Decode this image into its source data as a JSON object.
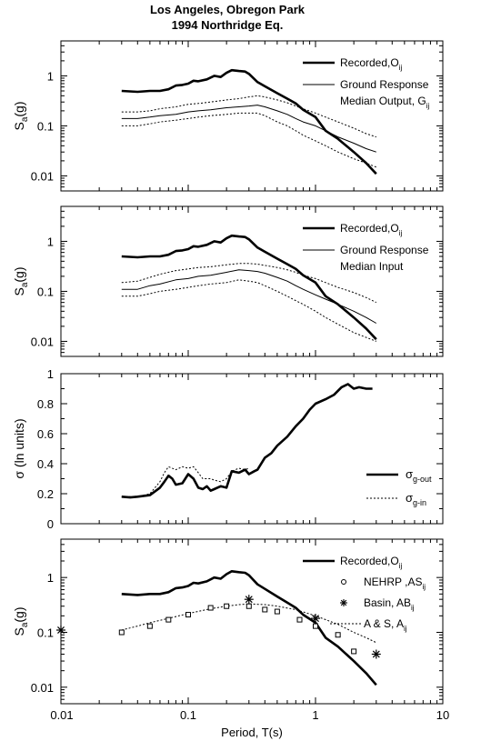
{
  "title_line1": "Los Angeles, Obregon Park",
  "title_line2": "1994 Northridge Eq.",
  "xlabel": "Period, T(s)",
  "x_ticks": [
    "0.01",
    "0.1",
    "1",
    "10"
  ],
  "chart_data": [
    {
      "type": "line",
      "panel": 1,
      "xscale": "log",
      "yscale": "log",
      "xlim": [
        0.01,
        10
      ],
      "ylim": [
        0.005,
        5
      ],
      "ylabel_main": "S",
      "ylabel_sub": "a",
      "ylabel_tail": "(g)",
      "y_ticks": [
        {
          "v": 1,
          "label": "1"
        },
        {
          "v": 0.1,
          "label": "0.1"
        },
        {
          "v": 0.01,
          "label": "0.01"
        }
      ],
      "legend_placement": "top-right",
      "legend": [
        {
          "text": "Recorded,O",
          "sub": "ij",
          "style": "thick"
        },
        {
          "text": "Ground Response",
          "text2": "Median Output, G",
          "sub": "ij",
          "style": "thin"
        }
      ],
      "series": [
        {
          "style": "thick",
          "x": [
            0.03,
            0.04,
            0.05,
            0.06,
            0.07,
            0.08,
            0.09,
            0.1,
            0.11,
            0.12,
            0.14,
            0.16,
            0.18,
            0.2,
            0.22,
            0.25,
            0.28,
            0.3,
            0.35,
            0.4,
            0.5,
            0.6,
            0.7,
            0.8,
            1.0,
            1.2,
            1.5,
            2.0,
            2.5,
            3.0
          ],
          "y": [
            0.5,
            0.48,
            0.5,
            0.5,
            0.54,
            0.64,
            0.66,
            0.7,
            0.8,
            0.78,
            0.85,
            1.0,
            0.95,
            1.15,
            1.3,
            1.25,
            1.22,
            1.1,
            0.75,
            0.62,
            0.45,
            0.35,
            0.28,
            0.21,
            0.15,
            0.08,
            0.055,
            0.03,
            0.018,
            0.011
          ]
        },
        {
          "style": "thin",
          "x": [
            0.03,
            0.04,
            0.05,
            0.06,
            0.08,
            0.1,
            0.12,
            0.15,
            0.2,
            0.25,
            0.3,
            0.35,
            0.4,
            0.5,
            0.6,
            0.7,
            0.8,
            1.0,
            1.2,
            1.5,
            2.0,
            2.5,
            3.0
          ],
          "y": [
            0.14,
            0.14,
            0.15,
            0.16,
            0.17,
            0.19,
            0.2,
            0.21,
            0.23,
            0.24,
            0.25,
            0.26,
            0.24,
            0.2,
            0.17,
            0.14,
            0.12,
            0.1,
            0.08,
            0.06,
            0.045,
            0.035,
            0.03
          ]
        },
        {
          "style": "dotted",
          "x": [
            0.03,
            0.04,
            0.05,
            0.06,
            0.08,
            0.1,
            0.12,
            0.15,
            0.2,
            0.25,
            0.3,
            0.35,
            0.4,
            0.5,
            0.6,
            0.7,
            0.8,
            1.0,
            1.2,
            1.5,
            2.0,
            2.5,
            3.0
          ],
          "y": [
            0.19,
            0.19,
            0.2,
            0.22,
            0.24,
            0.27,
            0.28,
            0.3,
            0.33,
            0.35,
            0.38,
            0.4,
            0.38,
            0.33,
            0.29,
            0.25,
            0.22,
            0.18,
            0.15,
            0.12,
            0.09,
            0.07,
            0.06
          ]
        },
        {
          "style": "dotted",
          "x": [
            0.03,
            0.04,
            0.05,
            0.06,
            0.08,
            0.1,
            0.12,
            0.15,
            0.2,
            0.25,
            0.3,
            0.35,
            0.4,
            0.5,
            0.6,
            0.7,
            0.8,
            1.0,
            1.2,
            1.5,
            2.0,
            2.5,
            3.0
          ],
          "y": [
            0.1,
            0.1,
            0.11,
            0.12,
            0.13,
            0.14,
            0.15,
            0.16,
            0.17,
            0.18,
            0.18,
            0.18,
            0.16,
            0.12,
            0.1,
            0.08,
            0.065,
            0.05,
            0.04,
            0.03,
            0.022,
            0.018,
            0.015
          ]
        }
      ]
    },
    {
      "type": "line",
      "panel": 2,
      "xscale": "log",
      "yscale": "log",
      "xlim": [
        0.01,
        10
      ],
      "ylim": [
        0.005,
        5
      ],
      "ylabel_main": "S",
      "ylabel_sub": "a",
      "ylabel_tail": "(g)",
      "y_ticks": [
        {
          "v": 1,
          "label": "1"
        },
        {
          "v": 0.1,
          "label": "0.1"
        },
        {
          "v": 0.01,
          "label": "0.01"
        }
      ],
      "legend_placement": "top-right",
      "legend": [
        {
          "text": "Recorded,O",
          "sub": "ij",
          "style": "thick"
        },
        {
          "text": "Ground Response",
          "text2": "Median Input",
          "sub": "",
          "style": "thin"
        }
      ],
      "series": [
        {
          "style": "thick",
          "x": [
            0.03,
            0.04,
            0.05,
            0.06,
            0.07,
            0.08,
            0.09,
            0.1,
            0.11,
            0.12,
            0.14,
            0.16,
            0.18,
            0.2,
            0.22,
            0.25,
            0.28,
            0.3,
            0.35,
            0.4,
            0.5,
            0.6,
            0.7,
            0.8,
            1.0,
            1.2,
            1.5,
            2.0,
            2.5,
            3.0
          ],
          "y": [
            0.5,
            0.48,
            0.5,
            0.5,
            0.54,
            0.64,
            0.66,
            0.7,
            0.8,
            0.78,
            0.85,
            1.0,
            0.95,
            1.15,
            1.3,
            1.25,
            1.22,
            1.1,
            0.75,
            0.62,
            0.45,
            0.35,
            0.28,
            0.21,
            0.15,
            0.08,
            0.055,
            0.03,
            0.018,
            0.011
          ]
        },
        {
          "style": "thin",
          "x": [
            0.03,
            0.04,
            0.05,
            0.06,
            0.08,
            0.1,
            0.12,
            0.15,
            0.2,
            0.25,
            0.3,
            0.35,
            0.4,
            0.5,
            0.6,
            0.7,
            0.8,
            1.0,
            1.2,
            1.5,
            2.0,
            2.5,
            3.0
          ],
          "y": [
            0.11,
            0.11,
            0.13,
            0.14,
            0.17,
            0.18,
            0.2,
            0.21,
            0.24,
            0.27,
            0.26,
            0.25,
            0.23,
            0.19,
            0.16,
            0.13,
            0.11,
            0.085,
            0.07,
            0.055,
            0.04,
            0.03,
            0.023
          ]
        },
        {
          "style": "dotted",
          "x": [
            0.03,
            0.04,
            0.05,
            0.06,
            0.08,
            0.1,
            0.12,
            0.15,
            0.2,
            0.25,
            0.3,
            0.35,
            0.4,
            0.5,
            0.6,
            0.7,
            0.8,
            1.0,
            1.2,
            1.5,
            2.0,
            2.5,
            3.0
          ],
          "y": [
            0.15,
            0.16,
            0.19,
            0.22,
            0.26,
            0.28,
            0.3,
            0.31,
            0.34,
            0.36,
            0.36,
            0.35,
            0.33,
            0.3,
            0.27,
            0.24,
            0.21,
            0.18,
            0.15,
            0.12,
            0.095,
            0.075,
            0.06
          ]
        },
        {
          "style": "dotted",
          "x": [
            0.03,
            0.04,
            0.05,
            0.06,
            0.08,
            0.1,
            0.12,
            0.15,
            0.2,
            0.25,
            0.3,
            0.35,
            0.4,
            0.5,
            0.6,
            0.7,
            0.8,
            1.0,
            1.2,
            1.5,
            2.0,
            2.5,
            3.0
          ],
          "y": [
            0.08,
            0.08,
            0.09,
            0.1,
            0.11,
            0.12,
            0.13,
            0.14,
            0.15,
            0.17,
            0.16,
            0.15,
            0.13,
            0.1,
            0.08,
            0.065,
            0.055,
            0.04,
            0.03,
            0.022,
            0.015,
            0.012,
            0.01
          ]
        }
      ]
    },
    {
      "type": "line",
      "panel": 3,
      "xscale": "log",
      "yscale": "linear",
      "xlim": [
        0.01,
        10
      ],
      "ylim": [
        0,
        1
      ],
      "ylabel_main": "σ (ln units)",
      "ylabel_sub": "",
      "ylabel_tail": "",
      "y_ticks": [
        {
          "v": 0,
          "label": "0"
        },
        {
          "v": 0.2,
          "label": "0.2"
        },
        {
          "v": 0.4,
          "label": "0.4"
        },
        {
          "v": 0.6,
          "label": "0.6"
        },
        {
          "v": 0.8,
          "label": "0.8"
        },
        {
          "v": 1,
          "label": "1"
        }
      ],
      "legend_placement": "bottom-right",
      "legend": [
        {
          "text": "σ",
          "sub": "g-out",
          "style": "thick"
        },
        {
          "text": "σ",
          "sub": "g-in",
          "style": "dotted"
        }
      ],
      "series": [
        {
          "style": "thick",
          "x": [
            0.03,
            0.035,
            0.04,
            0.05,
            0.06,
            0.065,
            0.07,
            0.075,
            0.08,
            0.09,
            0.1,
            0.11,
            0.12,
            0.13,
            0.14,
            0.15,
            0.16,
            0.18,
            0.2,
            0.22,
            0.25,
            0.28,
            0.3,
            0.33,
            0.35,
            0.4,
            0.45,
            0.5,
            0.6,
            0.7,
            0.8,
            0.9,
            1.0,
            1.2,
            1.4,
            1.6,
            1.8,
            2.0,
            2.2,
            2.5,
            2.8
          ],
          "y": [
            0.18,
            0.175,
            0.18,
            0.19,
            0.24,
            0.28,
            0.32,
            0.3,
            0.26,
            0.27,
            0.33,
            0.3,
            0.24,
            0.23,
            0.25,
            0.22,
            0.23,
            0.25,
            0.24,
            0.35,
            0.34,
            0.36,
            0.33,
            0.35,
            0.36,
            0.44,
            0.47,
            0.52,
            0.58,
            0.65,
            0.7,
            0.76,
            0.8,
            0.83,
            0.86,
            0.91,
            0.93,
            0.9,
            0.91,
            0.9,
            0.9
          ]
        },
        {
          "style": "dotted",
          "x": [
            0.03,
            0.04,
            0.05,
            0.06,
            0.065,
            0.07,
            0.08,
            0.09,
            0.1,
            0.11,
            0.12,
            0.13,
            0.14,
            0.15,
            0.16,
            0.18,
            0.2,
            0.22,
            0.25,
            0.28,
            0.3
          ],
          "y": [
            0.18,
            0.18,
            0.2,
            0.28,
            0.34,
            0.38,
            0.36,
            0.38,
            0.37,
            0.38,
            0.34,
            0.3,
            0.3,
            0.3,
            0.29,
            0.28,
            0.3,
            0.35,
            0.37,
            0.36,
            0.37
          ]
        }
      ]
    },
    {
      "type": "line",
      "panel": 4,
      "xscale": "log",
      "yscale": "log",
      "xlim": [
        0.01,
        10
      ],
      "ylim": [
        0.005,
        5
      ],
      "ylabel_main": "S",
      "ylabel_sub": "a",
      "ylabel_tail": "(g)",
      "y_ticks": [
        {
          "v": 1,
          "label": "1"
        },
        {
          "v": 0.1,
          "label": "0.1"
        },
        {
          "v": 0.01,
          "label": "0.01"
        }
      ],
      "legend_placement": "top-right",
      "legend": [
        {
          "text": "Recorded,O",
          "sub": "ij",
          "style": "thick"
        },
        {
          "text": "NEHRP ,AS",
          "sub": "ij",
          "style": "circle"
        },
        {
          "text": "Basin, AB",
          "sub": "ij",
          "style": "star"
        },
        {
          "text": "A & S, A",
          "sub": "ij",
          "style": "dotted"
        }
      ],
      "series": [
        {
          "style": "thick",
          "x": [
            0.03,
            0.04,
            0.05,
            0.06,
            0.07,
            0.08,
            0.09,
            0.1,
            0.11,
            0.12,
            0.14,
            0.16,
            0.18,
            0.2,
            0.22,
            0.25,
            0.28,
            0.3,
            0.35,
            0.4,
            0.5,
            0.6,
            0.7,
            0.8,
            1.0,
            1.2,
            1.5,
            2.0,
            2.5,
            3.0
          ],
          "y": [
            0.5,
            0.48,
            0.5,
            0.5,
            0.54,
            0.64,
            0.66,
            0.7,
            0.8,
            0.78,
            0.85,
            1.0,
            0.95,
            1.15,
            1.3,
            1.25,
            1.22,
            1.1,
            0.75,
            0.62,
            0.45,
            0.35,
            0.28,
            0.21,
            0.15,
            0.08,
            0.055,
            0.03,
            0.018,
            0.011
          ]
        },
        {
          "style": "dotted",
          "x": [
            0.03,
            0.04,
            0.05,
            0.07,
            0.1,
            0.15,
            0.2,
            0.25,
            0.3,
            0.4,
            0.5,
            0.7,
            1.0,
            1.5,
            2.0,
            2.5,
            3.0
          ],
          "y": [
            0.11,
            0.13,
            0.15,
            0.18,
            0.22,
            0.27,
            0.3,
            0.32,
            0.33,
            0.32,
            0.3,
            0.26,
            0.2,
            0.14,
            0.1,
            0.08,
            0.065
          ]
        },
        {
          "style": "square",
          "x": [
            0.03,
            0.05,
            0.07,
            0.1,
            0.15,
            0.2,
            0.3,
            0.4,
            0.5,
            0.75,
            1.0,
            1.5,
            2.0
          ],
          "y": [
            0.1,
            0.13,
            0.17,
            0.21,
            0.28,
            0.3,
            0.3,
            0.26,
            0.24,
            0.17,
            0.13,
            0.09,
            0.045
          ]
        },
        {
          "style": "star",
          "x": [
            0.01,
            0.3,
            1.0,
            3.0
          ],
          "y": [
            0.11,
            0.4,
            0.18,
            0.04
          ]
        }
      ]
    }
  ]
}
